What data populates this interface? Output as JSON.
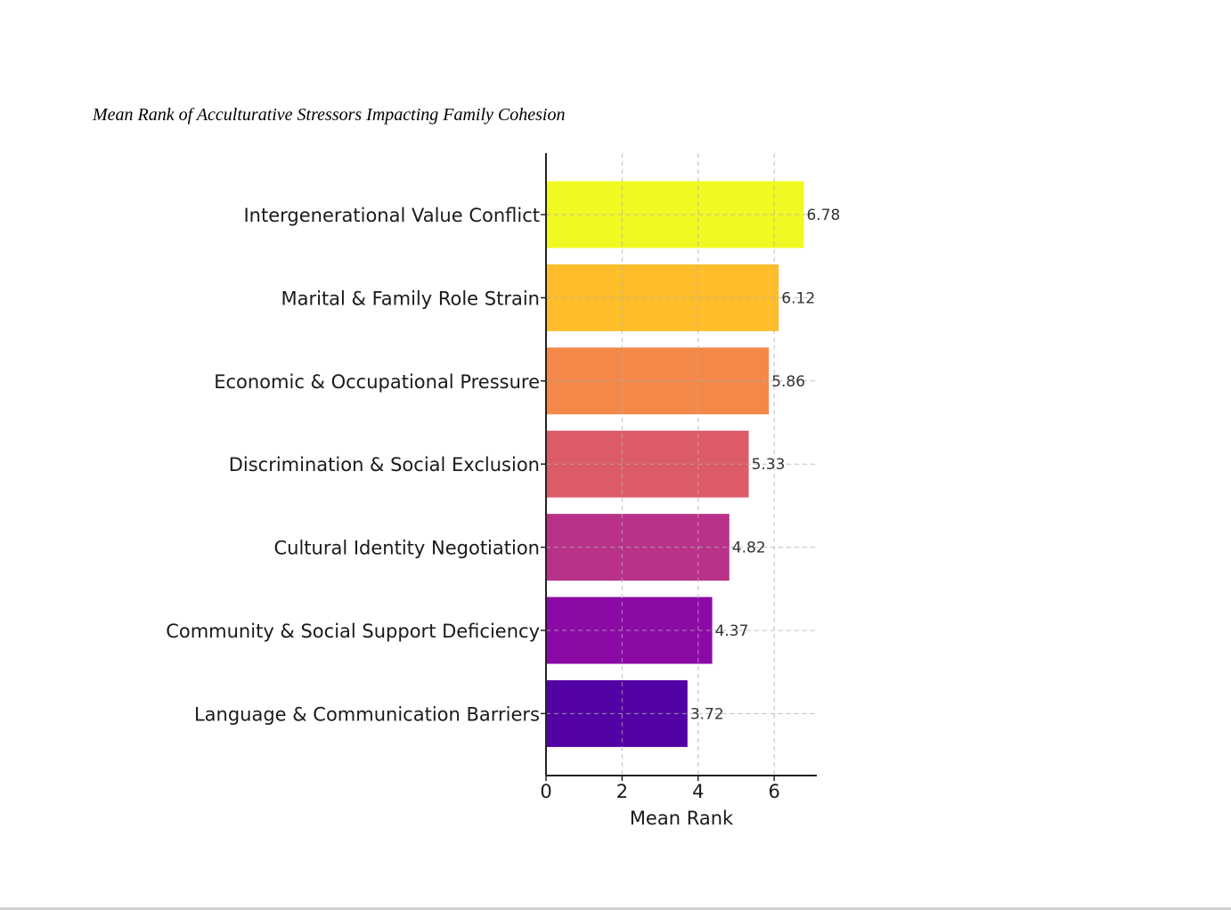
{
  "chart_data": {
    "type": "bar",
    "orientation": "horizontal",
    "title": "Mean Rank of Acculturative Stressors Impacting Family Cohesion",
    "xlabel": "Mean Rank",
    "ylabel": "",
    "xlim": [
      0,
      7.12
    ],
    "xticks": [
      0,
      2,
      4,
      6
    ],
    "grid": true,
    "categories": [
      "Intergenerational Value Conflict",
      "Marital & Family Role Strain",
      "Economic & Occupational Pressure",
      "Discrimination & Social Exclusion",
      "Cultural Identity Negotiation",
      "Community & Social Support Deficiency",
      "Language & Communication Barriers"
    ],
    "values": [
      6.78,
      6.12,
      5.86,
      5.33,
      4.82,
      4.37,
      3.72
    ],
    "value_labels": [
      "6.78",
      "6.12",
      "5.86",
      "5.33",
      "4.82",
      "4.37",
      "3.72"
    ],
    "colors": [
      "#f0f921",
      "#febd2a",
      "#f48849",
      "#db5c68",
      "#b83289",
      "#8b0aa5",
      "#5302a3"
    ]
  }
}
